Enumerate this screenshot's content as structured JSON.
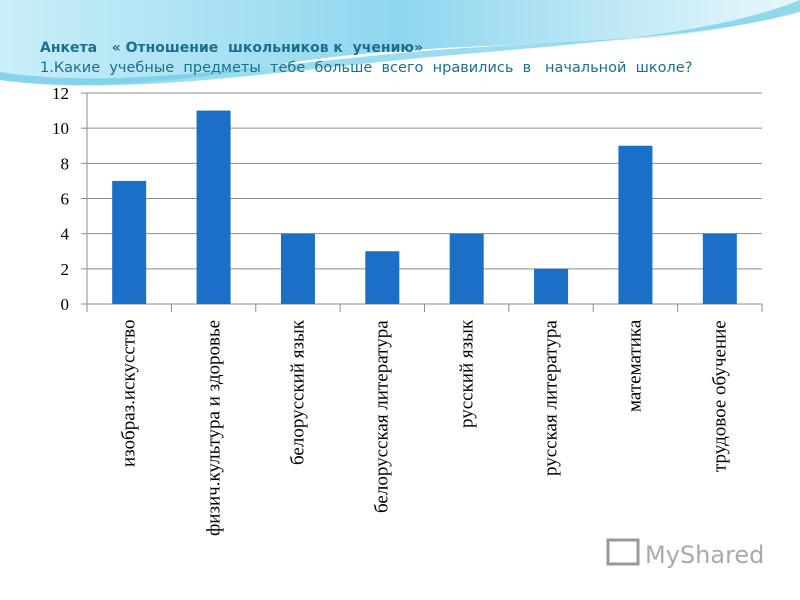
{
  "chart_data": {
    "type": "bar",
    "title": "Анкета   « Отношение  школьников к  учению»",
    "subtitle": "1.Какие  учебные  предметы  тебе  больше  всего  нравились  в   начальной  школе?",
    "categories": [
      "изобраз.искусство",
      "физич.культура и здоровье",
      "белорусский язык",
      "белорусская литература",
      "русский язык",
      "русская литература",
      "математика",
      "трудовое обучение"
    ],
    "values": [
      7,
      11,
      4,
      3,
      4,
      2,
      9,
      4
    ],
    "color": "#1a6fc7",
    "ylim": [
      0,
      12
    ],
    "yticks": [
      0,
      2,
      4,
      6,
      8,
      10,
      12
    ],
    "grid": true,
    "watermark": "MyShared"
  }
}
